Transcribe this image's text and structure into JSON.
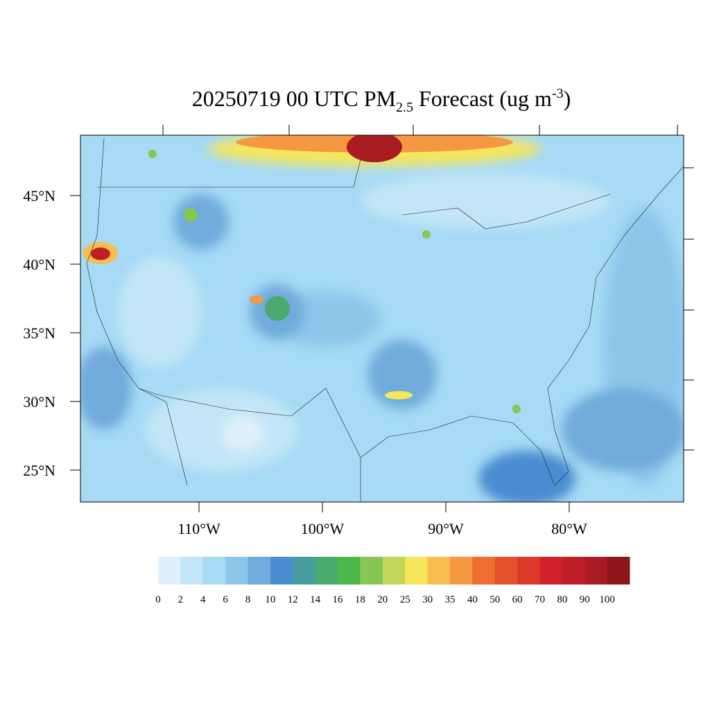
{
  "title": {
    "parts": [
      "20250719 00 UTC PM",
      "2.5",
      " Forecast (ug m",
      "-3",
      ")"
    ]
  },
  "lat_ticks": [
    {
      "value": 45,
      "label": "45°N"
    },
    {
      "value": 40,
      "label": "40°N"
    },
    {
      "value": 35,
      "label": "35°N"
    },
    {
      "value": 30,
      "label": "30°N"
    },
    {
      "value": 25,
      "label": "25°N"
    }
  ],
  "lon_ticks": [
    {
      "value": -110,
      "label": "110°W"
    },
    {
      "value": -100,
      "label": "100°W"
    },
    {
      "value": -90,
      "label": "90°W"
    },
    {
      "value": -80,
      "label": "80°W"
    }
  ],
  "colorbar": {
    "levels": [
      0,
      2,
      4,
      6,
      8,
      10,
      12,
      14,
      16,
      18,
      20,
      25,
      30,
      35,
      40,
      50,
      60,
      70,
      80,
      90,
      100
    ],
    "colors": [
      "#dff2fb",
      "#c2e6f7",
      "#a6daf5",
      "#8cc6ea",
      "#6fabdb",
      "#4a8dd0",
      "#4a9ea0",
      "#4caa6e",
      "#4cb84a",
      "#88c653",
      "#c4d65a",
      "#f6e65a",
      "#f7bd4e",
      "#f59842",
      "#f06e30",
      "#e65130",
      "#dd3a2c",
      "#d3222c",
      "#c01f27",
      "#a81c22",
      "#8e1618"
    ]
  }
}
